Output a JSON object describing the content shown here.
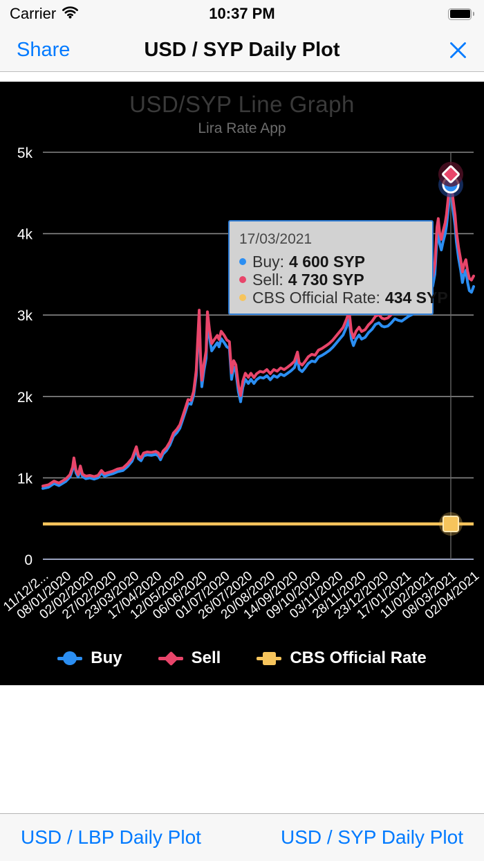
{
  "status_bar": {
    "carrier": "Carrier",
    "time": "10:37 PM"
  },
  "nav_bar": {
    "share_label": "Share",
    "title": "USD / SYP Daily Plot"
  },
  "toolbar": {
    "left_label": "USD / LBP Daily Plot",
    "right_label": "USD / SYP Daily Plot"
  },
  "chart": {
    "title": "USD/SYP Line Graph",
    "subtitle": "Lira Rate App",
    "tooltip": {
      "date": "17/03/2021",
      "rows": [
        {
          "label": "Buy:",
          "value": "4 600 SYP",
          "color": "#2b8ef2"
        },
        {
          "label": "Sell:",
          "value": "4 730 SYP",
          "color": "#e8456a"
        },
        {
          "label": "CBS Official Rate:",
          "value": "434 SYP",
          "color": "#f6c45c"
        }
      ]
    },
    "legend": [
      {
        "label": "Buy",
        "shape": "circle",
        "color": "#2b8ef2"
      },
      {
        "label": "Sell",
        "shape": "diamond",
        "color": "#e8456a"
      },
      {
        "label": "CBS Official Rate",
        "shape": "square",
        "color": "#f6c45c"
      }
    ]
  },
  "chart_data": {
    "type": "line",
    "title": "USD/SYP Line Graph",
    "subtitle": "Lira Rate App",
    "ylim": [
      0,
      5000
    ],
    "y_tick_labels": [
      "0",
      "1k",
      "2k",
      "3k",
      "4k",
      "5k"
    ],
    "x_tick_labels": [
      "11/12/2...",
      "08/01/2020",
      "02/02/2020",
      "27/02/2020",
      "23/03/2020",
      "17/04/2020",
      "12/05/2020",
      "06/06/2020",
      "01/07/2020",
      "26/07/2020",
      "20/08/2020",
      "14/09/2020",
      "09/10/2020",
      "03/11/2020",
      "28/11/2020",
      "23/12/2020",
      "17/01/2021",
      "11/02/2021",
      "08/03/2021",
      "02/04/2021"
    ],
    "series_names": [
      "Buy",
      "Sell",
      "CBS Official Rate"
    ],
    "colors": {
      "buy": "#2b8ef2",
      "sell": "#e8456a",
      "cbs": "#f6c45c",
      "grid": "#878787",
      "zero_axis": "#9aa3c0",
      "crosshair": "#6a6a6a"
    },
    "cbs_official_rate": 434,
    "highlight": {
      "date": "17/03/2021",
      "t": 0.947,
      "buy": 4600,
      "sell": 4730,
      "cbs": 434
    },
    "points": [
      [
        0.0,
        870,
        900
      ],
      [
        0.013,
        885,
        915
      ],
      [
        0.026,
        930,
        960
      ],
      [
        0.037,
        905,
        935
      ],
      [
        0.053,
        955,
        985
      ],
      [
        0.063,
        1010,
        1040
      ],
      [
        0.069,
        1100,
        1130
      ],
      [
        0.072,
        1210,
        1245
      ],
      [
        0.077,
        1060,
        1090
      ],
      [
        0.082,
        1010,
        1040
      ],
      [
        0.087,
        1110,
        1145
      ],
      [
        0.092,
        1015,
        1045
      ],
      [
        0.1,
        990,
        1020
      ],
      [
        0.109,
        1000,
        1030
      ],
      [
        0.119,
        985,
        1015
      ],
      [
        0.128,
        1000,
        1030
      ],
      [
        0.136,
        1060,
        1090
      ],
      [
        0.143,
        1020,
        1050
      ],
      [
        0.151,
        1035,
        1065
      ],
      [
        0.162,
        1050,
        1082
      ],
      [
        0.173,
        1075,
        1108
      ],
      [
        0.186,
        1090,
        1122
      ],
      [
        0.197,
        1140,
        1175
      ],
      [
        0.207,
        1205,
        1240
      ],
      [
        0.217,
        1345,
        1382
      ],
      [
        0.222,
        1235,
        1270
      ],
      [
        0.228,
        1210,
        1245
      ],
      [
        0.234,
        1270,
        1305
      ],
      [
        0.242,
        1282,
        1318
      ],
      [
        0.252,
        1276,
        1312
      ],
      [
        0.262,
        1288,
        1324
      ],
      [
        0.268,
        1270,
        1306
      ],
      [
        0.273,
        1222,
        1258
      ],
      [
        0.279,
        1292,
        1328
      ],
      [
        0.287,
        1335,
        1372
      ],
      [
        0.295,
        1405,
        1443
      ],
      [
        0.303,
        1510,
        1550
      ],
      [
        0.311,
        1555,
        1597
      ],
      [
        0.318,
        1610,
        1652
      ],
      [
        0.324,
        1705,
        1748
      ],
      [
        0.331,
        1815,
        1860
      ],
      [
        0.337,
        1915,
        1962
      ],
      [
        0.344,
        1905,
        1952
      ],
      [
        0.35,
        2010,
        2060
      ],
      [
        0.356,
        2260,
        2320
      ],
      [
        0.363,
        3000,
        3060
      ],
      [
        0.366,
        2420,
        2500
      ],
      [
        0.369,
        2120,
        2200
      ],
      [
        0.374,
        2320,
        2400
      ],
      [
        0.379,
        2470,
        2560
      ],
      [
        0.382,
        2950,
        3040
      ],
      [
        0.387,
        2720,
        2810
      ],
      [
        0.392,
        2560,
        2650
      ],
      [
        0.398,
        2610,
        2700
      ],
      [
        0.405,
        2660,
        2750
      ],
      [
        0.409,
        2610,
        2700
      ],
      [
        0.414,
        2710,
        2800
      ],
      [
        0.421,
        2660,
        2750
      ],
      [
        0.427,
        2610,
        2695
      ],
      [
        0.433,
        2590,
        2672
      ],
      [
        0.438,
        2210,
        2290
      ],
      [
        0.443,
        2360,
        2440
      ],
      [
        0.448,
        2310,
        2390
      ],
      [
        0.454,
        2060,
        2140
      ],
      [
        0.459,
        1935,
        2010
      ],
      [
        0.464,
        2110,
        2185
      ],
      [
        0.47,
        2210,
        2285
      ],
      [
        0.477,
        2160,
        2235
      ],
      [
        0.483,
        2210,
        2285
      ],
      [
        0.49,
        2160,
        2232
      ],
      [
        0.496,
        2205,
        2278
      ],
      [
        0.504,
        2235,
        2308
      ],
      [
        0.512,
        2225,
        2298
      ],
      [
        0.52,
        2255,
        2330
      ],
      [
        0.528,
        2205,
        2280
      ],
      [
        0.536,
        2255,
        2330
      ],
      [
        0.544,
        2235,
        2310
      ],
      [
        0.552,
        2275,
        2350
      ],
      [
        0.56,
        2255,
        2330
      ],
      [
        0.568,
        2285,
        2360
      ],
      [
        0.576,
        2315,
        2392
      ],
      [
        0.584,
        2355,
        2432
      ],
      [
        0.591,
        2465,
        2545
      ],
      [
        0.595,
        2335,
        2415
      ],
      [
        0.602,
        2305,
        2385
      ],
      [
        0.608,
        2345,
        2425
      ],
      [
        0.616,
        2405,
        2487
      ],
      [
        0.624,
        2435,
        2517
      ],
      [
        0.632,
        2425,
        2507
      ],
      [
        0.64,
        2485,
        2570
      ],
      [
        0.648,
        2505,
        2590
      ],
      [
        0.657,
        2535,
        2622
      ],
      [
        0.665,
        2565,
        2652
      ],
      [
        0.673,
        2605,
        2692
      ],
      [
        0.681,
        2655,
        2745
      ],
      [
        0.689,
        2705,
        2795
      ],
      [
        0.697,
        2755,
        2848
      ],
      [
        0.705,
        2855,
        2950
      ],
      [
        0.711,
        2945,
        3045
      ],
      [
        0.716,
        2705,
        2800
      ],
      [
        0.721,
        2625,
        2720
      ],
      [
        0.727,
        2705,
        2800
      ],
      [
        0.734,
        2755,
        2850
      ],
      [
        0.74,
        2705,
        2798
      ],
      [
        0.748,
        2725,
        2820
      ],
      [
        0.756,
        2785,
        2880
      ],
      [
        0.764,
        2825,
        2922
      ],
      [
        0.772,
        2885,
        2985
      ],
      [
        0.78,
        2905,
        3005
      ],
      [
        0.787,
        2865,
        2962
      ],
      [
        0.793,
        2855,
        2952
      ],
      [
        0.801,
        2865,
        2965
      ],
      [
        0.809,
        2905,
        3005
      ],
      [
        0.817,
        2955,
        3058
      ],
      [
        0.825,
        2935,
        3038
      ],
      [
        0.833,
        2925,
        3028
      ],
      [
        0.841,
        2955,
        3060
      ],
      [
        0.849,
        2985,
        3090
      ],
      [
        0.857,
        3005,
        3112
      ],
      [
        0.865,
        3055,
        3165
      ],
      [
        0.873,
        3105,
        3218
      ],
      [
        0.881,
        3085,
        3198
      ],
      [
        0.889,
        3155,
        3270
      ],
      [
        0.897,
        3255,
        3372
      ],
      [
        0.905,
        3355,
        3475
      ],
      [
        0.91,
        3500,
        3625
      ],
      [
        0.915,
        3950,
        4080
      ],
      [
        0.918,
        4050,
        4185
      ],
      [
        0.921,
        3880,
        4010
      ],
      [
        0.925,
        3800,
        3930
      ],
      [
        0.929,
        3900,
        4032
      ],
      [
        0.934,
        4000,
        4135
      ],
      [
        0.937,
        4100,
        4240
      ],
      [
        0.942,
        4350,
        4490
      ],
      [
        0.947,
        4600,
        4730
      ],
      [
        0.952,
        4300,
        4430
      ],
      [
        0.957,
        4100,
        4230
      ],
      [
        0.96,
        3900,
        4030
      ],
      [
        0.965,
        3700,
        3830
      ],
      [
        0.97,
        3550,
        3680
      ],
      [
        0.974,
        3400,
        3530
      ],
      [
        0.978,
        3500,
        3630
      ],
      [
        0.982,
        3550,
        3680
      ],
      [
        0.986,
        3400,
        3540
      ],
      [
        0.99,
        3300,
        3450
      ],
      [
        0.995,
        3280,
        3430
      ],
      [
        1.0,
        3350,
        3480
      ]
    ]
  }
}
